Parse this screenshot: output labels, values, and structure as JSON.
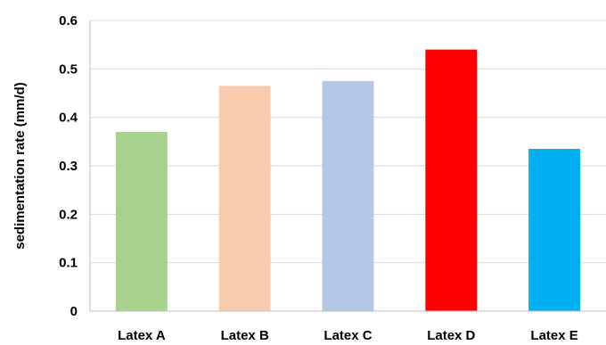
{
  "chart_data": {
    "type": "bar",
    "title": "",
    "xlabel": "",
    "ylabel": "sedimentation rate (mm/d)",
    "ylim": [
      0,
      0.6
    ],
    "yticks": [
      "0",
      "0.1",
      "0.2",
      "0.3",
      "0.4",
      "0.5",
      "0.6"
    ],
    "grid": true,
    "legend": "none",
    "categories": [
      "Latex A",
      "Latex B",
      "Latex C",
      "Latex D",
      "Latex E"
    ],
    "values": [
      0.37,
      0.465,
      0.475,
      0.54,
      0.335
    ],
    "colors": [
      "#a9d18e",
      "#f8cbad",
      "#b4c7e7",
      "#ff0000",
      "#00b0f0"
    ]
  }
}
